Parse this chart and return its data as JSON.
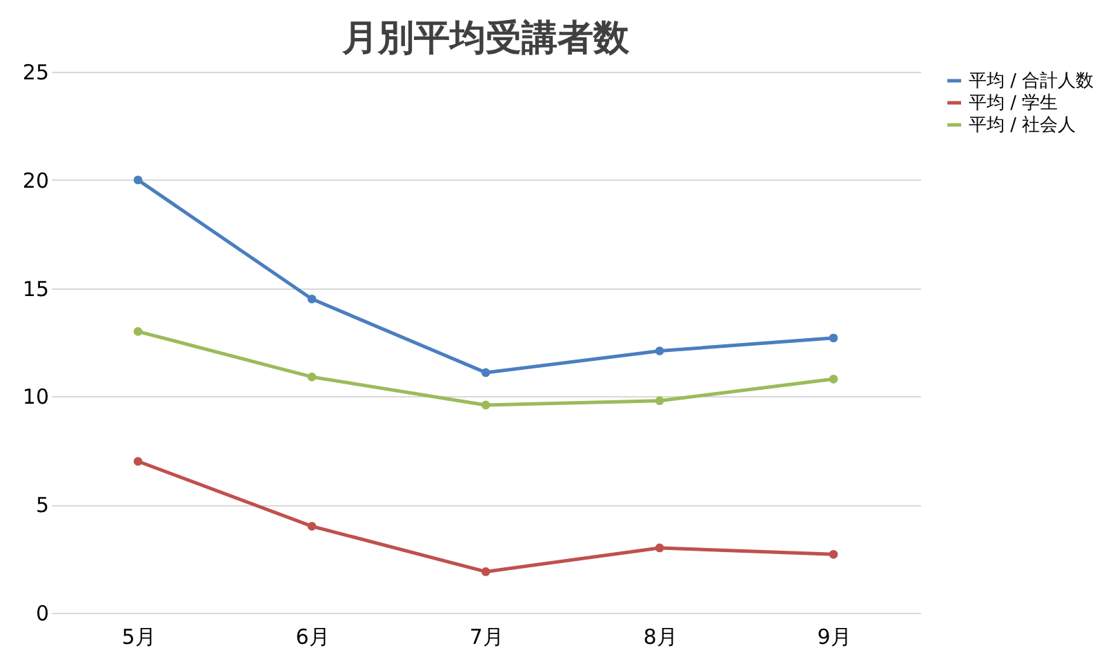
{
  "chart_data": {
    "type": "line",
    "title": "月別平均受講者数",
    "categories": [
      "5月",
      "6月",
      "7月",
      "8月",
      "9月"
    ],
    "series": [
      {
        "name": "平均 / 合計人数",
        "color": "#4a7ebf",
        "values": [
          20,
          14.5,
          11.1,
          12.1,
          12.7
        ]
      },
      {
        "name": "平均 / 学生",
        "color": "#c0504d",
        "values": [
          7.0,
          4.0,
          1.9,
          3.0,
          2.7
        ]
      },
      {
        "name": "平均 / 社会人",
        "color": "#9bbb59",
        "values": [
          13,
          10.9,
          9.6,
          9.8,
          10.8
        ]
      }
    ],
    "ylim": [
      0,
      25
    ],
    "yticks": [
      0,
      5,
      10,
      15,
      20,
      25
    ],
    "grid": "y",
    "legend": "right",
    "marker": "circle",
    "line_style": "solid"
  }
}
